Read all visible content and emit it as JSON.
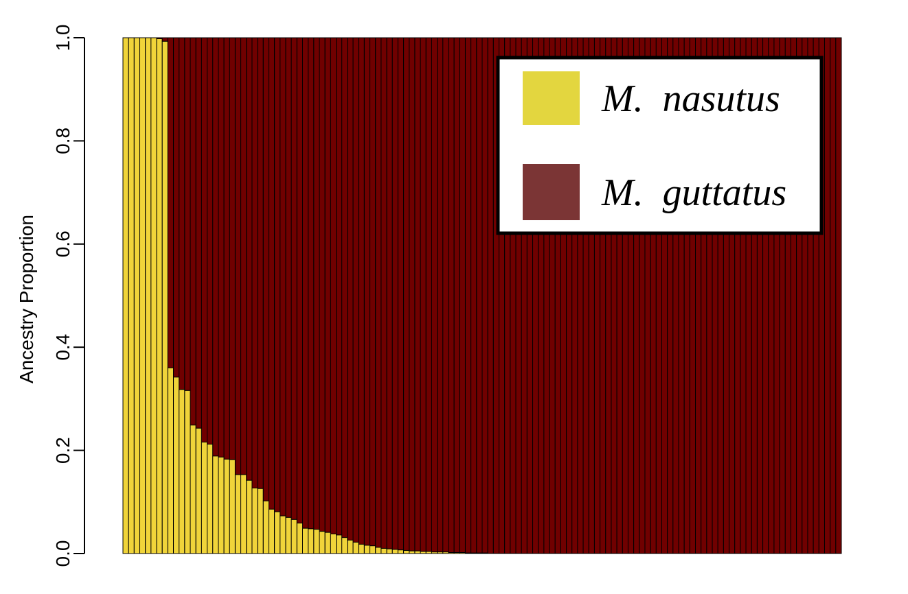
{
  "chart_data": {
    "type": "bar",
    "stacked": true,
    "title": "",
    "xlabel": "",
    "ylabel": "Ancestry Proportion",
    "ylim": [
      0,
      1
    ],
    "yticks": [
      "0.0",
      "0.2",
      "0.4",
      "0.6",
      "0.8",
      "1.0"
    ],
    "legend": {
      "placement": "top-right"
    },
    "series": [
      {
        "name": "M. nasutus",
        "legend_prefix": "M.",
        "legend_suffix": "nasutus",
        "color": "#f0d43a",
        "legend_color": "#e3d63f"
      },
      {
        "name": "M. guttatus",
        "legend_prefix": "M.",
        "legend_suffix": "guttatus",
        "color": "#700000",
        "legend_color": "#7b3535"
      }
    ],
    "values": [
      1.0,
      1.0,
      1.0,
      1.0,
      1.0,
      1.0,
      0.998,
      0.993,
      0.36,
      0.342,
      0.318,
      0.316,
      0.249,
      0.243,
      0.216,
      0.212,
      0.189,
      0.187,
      0.183,
      0.182,
      0.153,
      0.153,
      0.142,
      0.127,
      0.126,
      0.102,
      0.086,
      0.081,
      0.073,
      0.07,
      0.066,
      0.059,
      0.049,
      0.048,
      0.047,
      0.043,
      0.041,
      0.038,
      0.036,
      0.031,
      0.026,
      0.022,
      0.018,
      0.016,
      0.015,
      0.012,
      0.01,
      0.009,
      0.008,
      0.007,
      0.006,
      0.005,
      0.005,
      0.004,
      0.004,
      0.003,
      0.003,
      0.003,
      0.002,
      0.002,
      0.002,
      0.001,
      0.001,
      0.001,
      0.001,
      0.0,
      0.0,
      0.0,
      0.0,
      0.0,
      0.0,
      0.0,
      0.0,
      0.0,
      0.0,
      0.0,
      0.0,
      0.0,
      0.0,
      0.0,
      0.0,
      0.0,
      0.0,
      0.0,
      0.0,
      0.0,
      0.0,
      0.0,
      0.0,
      0.0,
      0.0,
      0.0,
      0.0,
      0.0,
      0.0,
      0.0,
      0.0,
      0.0,
      0.0,
      0.0,
      0.0,
      0.0,
      0.0,
      0.0,
      0.0,
      0.0,
      0.0,
      0.0,
      0.0,
      0.0,
      0.0,
      0.0,
      0.0,
      0.0,
      0.0,
      0.0,
      0.0,
      0.0,
      0.0,
      0.0,
      0.0,
      0.0,
      0.0,
      0.0,
      0.0,
      0.0,
      0.0,
      0.0
    ]
  }
}
